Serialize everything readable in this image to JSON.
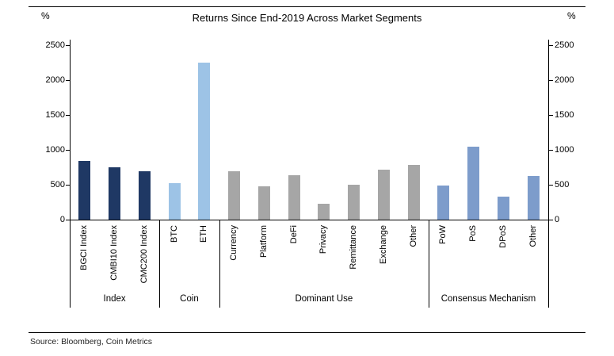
{
  "title": "Returns Since End-2019 Across Market Segments",
  "source": "Source: Bloomberg, Coin Metrics",
  "y_axis_unit": "%",
  "chart_data": {
    "type": "bar",
    "title": "Returns Since End-2019 Across Market Segments",
    "ylabel": "%",
    "ylim": [
      0,
      2500
    ],
    "yticks": [
      0,
      500,
      1000,
      1500,
      2000,
      2500
    ],
    "grid": false,
    "legend": "none",
    "axis_color": "#000000",
    "groups": [
      {
        "label": "Index",
        "color": "#1F3864",
        "categories": [
          "BGCI Index",
          "CMBI10 Index",
          "CMC200 Index"
        ],
        "values": [
          840,
          750,
          690
        ]
      },
      {
        "label": "Coin",
        "color": "#9DC3E6",
        "categories": [
          "BTC",
          "ETH"
        ],
        "values": [
          520,
          2250
        ]
      },
      {
        "label": "Dominant Use",
        "color": "#A6A6A6",
        "categories": [
          "Currency",
          "Platform",
          "DeFi",
          "Privacy",
          "Remittance",
          "Exchange",
          "Other"
        ],
        "values": [
          690,
          475,
          640,
          230,
          500,
          715,
          780
        ]
      },
      {
        "label": "Consensus Mechanism",
        "color": "#7D9CCB",
        "categories": [
          "PoW",
          "PoS",
          "DPoS",
          "Other"
        ],
        "values": [
          490,
          1050,
          330,
          625
        ]
      }
    ]
  }
}
